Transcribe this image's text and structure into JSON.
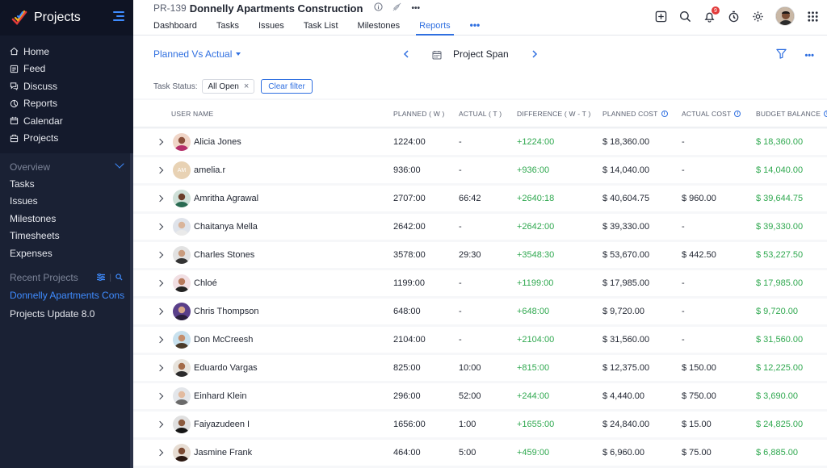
{
  "sidebar": {
    "app_title": "Projects",
    "nav": [
      {
        "label": "Home",
        "icon": "home-icon"
      },
      {
        "label": "Feed",
        "icon": "feed-icon"
      },
      {
        "label": "Discuss",
        "icon": "discuss-icon"
      },
      {
        "label": "Reports",
        "icon": "reports-icon"
      },
      {
        "label": "Calendar",
        "icon": "calendar-icon"
      },
      {
        "label": "Projects",
        "icon": "projects-icon"
      }
    ],
    "overview_label": "Overview",
    "overview_items": [
      "Tasks",
      "Issues",
      "Milestones",
      "Timesheets",
      "Expenses"
    ],
    "recent_label": "Recent Projects",
    "recent_items": [
      {
        "label": "Donnelly Apartments Cons",
        "active": true
      },
      {
        "label": "Projects Update 8.0",
        "active": false
      }
    ]
  },
  "header": {
    "project_id": "PR-139",
    "project_name": "Donnelly Apartments Construction",
    "tabs": [
      {
        "label": "Dashboard",
        "active": false
      },
      {
        "label": "Tasks",
        "active": false
      },
      {
        "label": "Issues",
        "active": false
      },
      {
        "label": "Task List",
        "active": false
      },
      {
        "label": "Milestones",
        "active": false
      },
      {
        "label": "Reports",
        "active": true
      }
    ],
    "tab_more": "•••",
    "notification_count": "9"
  },
  "toolbar": {
    "report_type": "Planned Vs Actual",
    "span_label": "Project Span"
  },
  "filters": {
    "status_label": "Task Status:",
    "chip_value": "All Open",
    "clear_label": "Clear filter"
  },
  "table": {
    "headers": {
      "user": "USER NAME",
      "planned": "PLANNED  ( W )",
      "actual": "ACTUAL  ( T )",
      "difference": "DIFFERENCE  ( W - T )",
      "planned_cost": "PLANNED COST",
      "actual_cost": "ACTUAL COST",
      "budget_balance": "BUDGET BALANCE"
    },
    "rows": [
      {
        "name": "Alicia Jones",
        "planned": "1224:00",
        "actual": "-",
        "diff": "+1224:00",
        "pcost": "$ 18,360.00",
        "acost": "-",
        "bal": "$ 18,360.00"
      },
      {
        "name": "amelia.r",
        "initials": "AM",
        "planned": "936:00",
        "actual": "-",
        "diff": "+936:00",
        "pcost": "$ 14,040.00",
        "acost": "-",
        "bal": "$ 14,040.00"
      },
      {
        "name": "Amritha Agrawal",
        "planned": "2707:00",
        "actual": "66:42",
        "diff": "+2640:18",
        "pcost": "$ 40,604.75",
        "acost": "$ 960.00",
        "bal": "$ 39,644.75"
      },
      {
        "name": "Chaitanya Mella",
        "planned": "2642:00",
        "actual": "-",
        "diff": "+2642:00",
        "pcost": "$ 39,330.00",
        "acost": "-",
        "bal": "$ 39,330.00"
      },
      {
        "name": "Charles Stones",
        "planned": "3578:00",
        "actual": "29:30",
        "diff": "+3548:30",
        "pcost": "$ 53,670.00",
        "acost": "$ 442.50",
        "bal": "$ 53,227.50"
      },
      {
        "name": "Chloé",
        "planned": "1199:00",
        "actual": "-",
        "diff": "+1199:00",
        "pcost": "$ 17,985.00",
        "acost": "-",
        "bal": "$ 17,985.00"
      },
      {
        "name": "Chris Thompson",
        "planned": "648:00",
        "actual": "-",
        "diff": "+648:00",
        "pcost": "$ 9,720.00",
        "acost": "-",
        "bal": "$ 9,720.00"
      },
      {
        "name": "Don McCreesh",
        "planned": "2104:00",
        "actual": "-",
        "diff": "+2104:00",
        "pcost": "$ 31,560.00",
        "acost": "-",
        "bal": "$ 31,560.00"
      },
      {
        "name": "Eduardo Vargas",
        "planned": "825:00",
        "actual": "10:00",
        "diff": "+815:00",
        "pcost": "$ 12,375.00",
        "acost": "$ 150.00",
        "bal": "$ 12,225.00"
      },
      {
        "name": "Einhard Klein",
        "planned": "296:00",
        "actual": "52:00",
        "diff": "+244:00",
        "pcost": "$ 4,440.00",
        "acost": "$ 750.00",
        "bal": "$ 3,690.00"
      },
      {
        "name": "Faiyazudeen I",
        "planned": "1656:00",
        "actual": "1:00",
        "diff": "+1655:00",
        "pcost": "$ 24,840.00",
        "acost": "$ 15.00",
        "bal": "$ 24,825.00"
      },
      {
        "name": "Jasmine Frank",
        "planned": "464:00",
        "actual": "5:00",
        "diff": "+459:00",
        "pcost": "$ 6,960.00",
        "acost": "$ 75.00",
        "bal": "$ 6,885.00"
      }
    ]
  },
  "colors": {
    "accent": "#2f6fe0",
    "positive": "#2fa84f",
    "sidebar_bg": "#141a2c"
  }
}
